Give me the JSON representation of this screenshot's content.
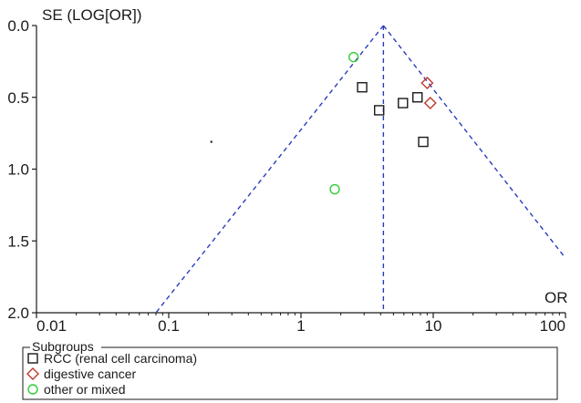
{
  "chart_data": {
    "type": "scatter",
    "variant": "funnel-plot",
    "ylabel": "SE (LOG[OR])",
    "xlabel": "OR",
    "x_scale": "log",
    "x_ticks": [
      0.01,
      0.1,
      1,
      10,
      100
    ],
    "x_tick_labels": [
      "0.01",
      "0.1",
      "1",
      "10",
      "100"
    ],
    "xlim": [
      0.01,
      100
    ],
    "y_ticks": [
      0.0,
      0.5,
      1.0,
      1.5,
      2.0
    ],
    "y_tick_labels": [
      "0.0",
      "0.5",
      "1.0",
      "1.5",
      "2.0"
    ],
    "ylim": [
      0,
      2
    ],
    "y_inverted": true,
    "pooled_or": 4.2,
    "funnel": {
      "apex": [
        4.2,
        0
      ],
      "left_base": [
        0.08,
        2.0
      ],
      "right_edge": [
        100,
        1.62
      ]
    },
    "grid": false,
    "legend": {
      "title": "Subgroups",
      "position": "bottom",
      "entries": [
        {
          "label": "RCC (renal cell carcinoma)",
          "marker": "square",
          "color": "#1a1a1a"
        },
        {
          "label": "digestive cancer",
          "marker": "diamond",
          "color": "#c0392b"
        },
        {
          "label": "other or mixed",
          "marker": "circle",
          "color": "#33cc33"
        }
      ]
    },
    "series": [
      {
        "name": "RCC (renal cell carcinoma)",
        "marker": "square",
        "color": "#1a1a1a",
        "points": [
          {
            "x": 2.9,
            "y": 0.43
          },
          {
            "x": 3.9,
            "y": 0.59
          },
          {
            "x": 5.9,
            "y": 0.54
          },
          {
            "x": 7.6,
            "y": 0.5
          },
          {
            "x": 8.4,
            "y": 0.81
          }
        ]
      },
      {
        "name": "digestive cancer",
        "marker": "diamond",
        "color": "#c0392b",
        "points": [
          {
            "x": 9.0,
            "y": 0.4
          },
          {
            "x": 9.5,
            "y": 0.54
          }
        ]
      },
      {
        "name": "other or mixed",
        "marker": "circle",
        "color": "#33cc33",
        "points": [
          {
            "x": 2.5,
            "y": 0.22
          },
          {
            "x": 1.8,
            "y": 1.14
          }
        ]
      }
    ],
    "annotations": [
      {
        "type": "dot",
        "x": 0.21,
        "y": 0.81
      }
    ]
  }
}
